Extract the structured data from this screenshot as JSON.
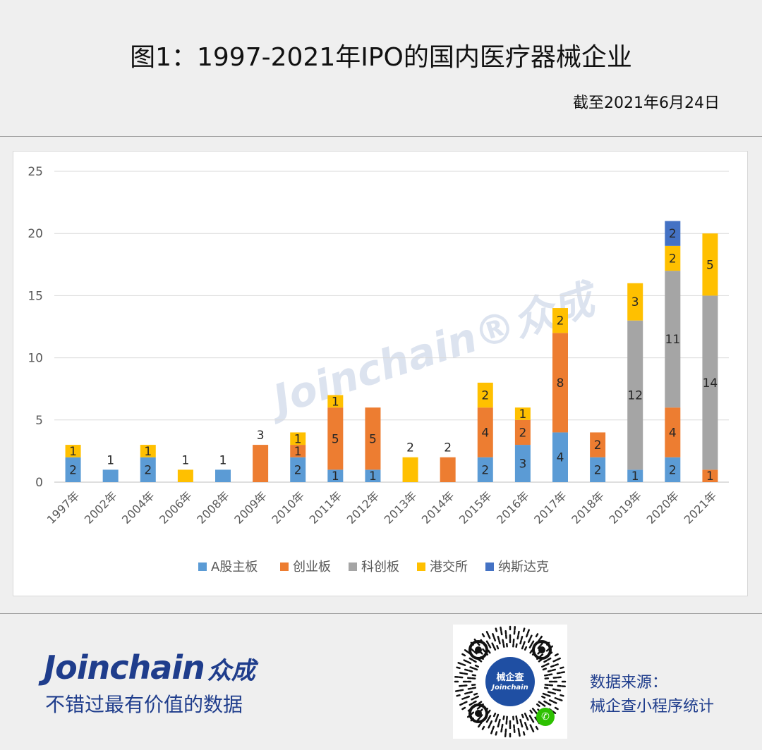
{
  "header": {
    "title": "图1：1997-2021年IPO的国内医疗器械企业",
    "as_of": "截至2021年6月24日"
  },
  "watermark": {
    "latin": "Joinchain",
    "chinese": "众成"
  },
  "chart_data": {
    "type": "bar",
    "stacked": true,
    "title": "",
    "xlabel": "",
    "ylabel": "",
    "ylim": [
      0,
      25
    ],
    "yticks": [
      0,
      5,
      10,
      15,
      20,
      25
    ],
    "grid": true,
    "legend_position": "bottom",
    "categories": [
      "1997年",
      "2002年",
      "2004年",
      "2006年",
      "2008年",
      "2009年",
      "2010年",
      "2011年",
      "2012年",
      "2013年",
      "2014年",
      "2015年",
      "2016年",
      "2017年",
      "2018年",
      "2019年",
      "2020年",
      "2021年"
    ],
    "series": [
      {
        "name": "A股主板",
        "color": "#5b9bd5",
        "values": [
          2,
          1,
          2,
          0,
          1,
          0,
          2,
          1,
          1,
          0,
          0,
          2,
          3,
          4,
          2,
          1,
          2,
          0
        ]
      },
      {
        "name": "创业板",
        "color": "#ed7d31",
        "values": [
          0,
          0,
          0,
          0,
          0,
          3,
          1,
          5,
          5,
          0,
          2,
          4,
          2,
          8,
          2,
          0,
          4,
          1
        ]
      },
      {
        "name": "科创板",
        "color": "#a5a5a5",
        "values": [
          0,
          0,
          0,
          0,
          0,
          0,
          0,
          0,
          0,
          0,
          0,
          0,
          0,
          0,
          0,
          12,
          11,
          14
        ]
      },
      {
        "name": "港交所",
        "color": "#ffc000",
        "values": [
          1,
          0,
          1,
          1,
          0,
          0,
          1,
          1,
          0,
          2,
          0,
          2,
          1,
          2,
          0,
          3,
          2,
          5
        ]
      },
      {
        "name": "纳斯达克",
        "color": "#4472c4",
        "values": [
          0,
          0,
          0,
          0,
          0,
          0,
          0,
          0,
          0,
          0,
          0,
          0,
          0,
          0,
          0,
          0,
          2,
          0
        ]
      }
    ],
    "label_mode": "single-series bars show value above; multi-series bars show value inside each segment"
  },
  "footer": {
    "brand_latin": "Joinchain",
    "brand_chinese": "众成",
    "slogan": "不错过最有价值的数据",
    "qr_label": "械企查",
    "qr_sub": "Joinchain",
    "source_title": "数据来源：",
    "source_text": "械企查小程序统计"
  }
}
